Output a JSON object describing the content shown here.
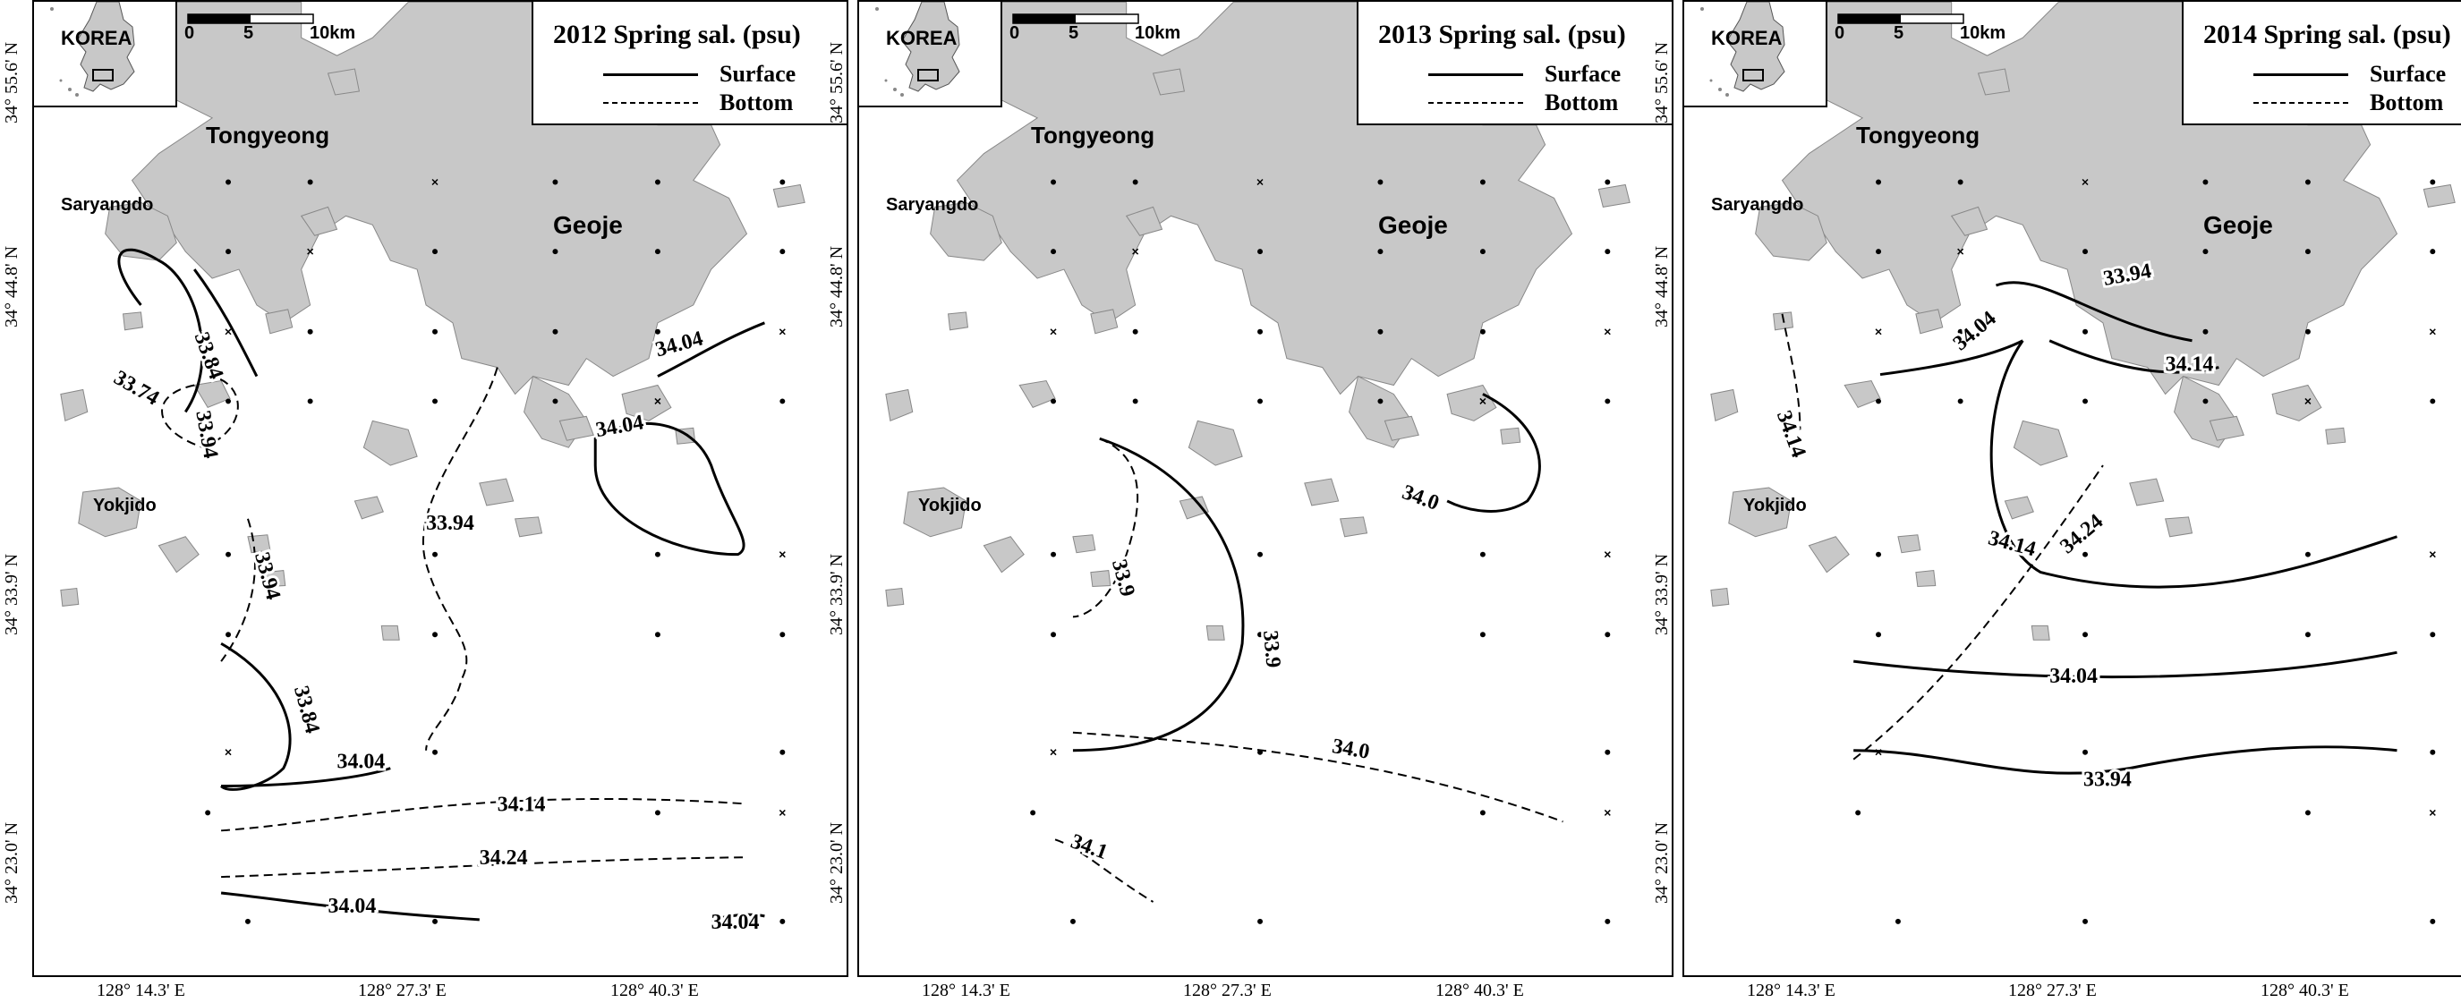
{
  "panels": [
    {
      "title": "2012 Spring sal. (psu)",
      "contours": [
        "33.74",
        "33.84",
        "33.94",
        "34.04",
        "34.04",
        "33.94",
        "33.94",
        "33.84",
        "34.04",
        "34.14",
        "34.24",
        "34.04",
        "34.04"
      ]
    },
    {
      "title": "2013 Spring sal. (psu)",
      "contours": [
        "34.0",
        "33.9",
        "33.9",
        "34.0",
        "34.1"
      ]
    },
    {
      "title": "2014 Spring sal. (psu)",
      "contours": [
        "33.94",
        "34.04",
        "34.14",
        "34.14",
        "34.14",
        "34.24",
        "34.04",
        "33.94"
      ]
    }
  ],
  "legend": {
    "surface": "Surface",
    "bottom": "Bottom"
  },
  "inset": {
    "label": "KOREA"
  },
  "scale": {
    "zero": "0",
    "five": "5",
    "ten": "10km"
  },
  "places": {
    "tongyeong": "Tongyeong",
    "geoje": "Geoje",
    "saryangdo": "Saryangdo",
    "yokjido": "Yokjido"
  },
  "axes": {
    "lat": [
      "34° 55.6' N",
      "34° 44.8' N",
      "34° 33.9' N",
      "34° 23.0' N"
    ],
    "lon": [
      "128° 14.3' E",
      "128° 27.3' E",
      "128° 40.3' E"
    ]
  },
  "colors": {
    "land": "#c8c8c8",
    "line": "#000000"
  }
}
